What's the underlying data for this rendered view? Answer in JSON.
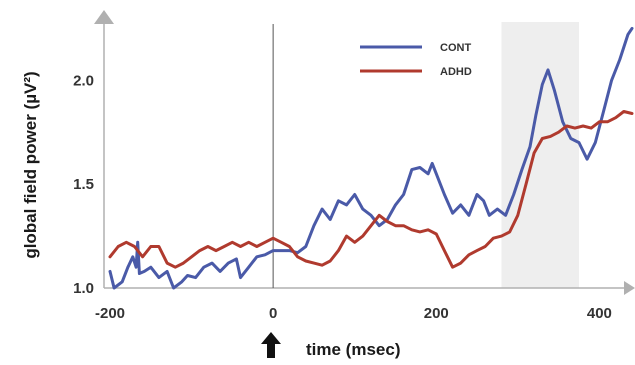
{
  "chart_data": {
    "type": "line",
    "xlabel": "time (msec)",
    "ylabel": "global field power (µV²)",
    "xlim": [
      -200,
      440
    ],
    "ylim": [
      1.0,
      2.3
    ],
    "x_ticks": [
      "-200",
      "0",
      "200",
      "400"
    ],
    "y_ticks": [
      "1.0",
      "1.5",
      "2.0"
    ],
    "highlight_window": [
      280,
      375
    ],
    "stimulus_onset": 0,
    "legend_placement": "top-right",
    "grid": false,
    "series": [
      {
        "name": "CONT",
        "color": "#4a5aa8",
        "points": [
          [
            -200,
            1.08
          ],
          [
            -195,
            1.0
          ],
          [
            -185,
            1.03
          ],
          [
            -178,
            1.1
          ],
          [
            -172,
            1.15
          ],
          [
            -168,
            1.1
          ],
          [
            -166,
            1.22
          ],
          [
            -164,
            1.07
          ],
          [
            -158,
            1.08
          ],
          [
            -150,
            1.1
          ],
          [
            -140,
            1.05
          ],
          [
            -130,
            1.08
          ],
          [
            -122,
            1.0
          ],
          [
            -112,
            1.03
          ],
          [
            -105,
            1.06
          ],
          [
            -95,
            1.05
          ],
          [
            -85,
            1.1
          ],
          [
            -75,
            1.12
          ],
          [
            -65,
            1.08
          ],
          [
            -55,
            1.12
          ],
          [
            -45,
            1.14
          ],
          [
            -40,
            1.05
          ],
          [
            -30,
            1.1
          ],
          [
            -20,
            1.15
          ],
          [
            -10,
            1.16
          ],
          [
            0,
            1.18
          ],
          [
            10,
            1.18
          ],
          [
            20,
            1.18
          ],
          [
            30,
            1.17
          ],
          [
            40,
            1.2
          ],
          [
            50,
            1.3
          ],
          [
            60,
            1.38
          ],
          [
            70,
            1.33
          ],
          [
            80,
            1.42
          ],
          [
            90,
            1.4
          ],
          [
            100,
            1.45
          ],
          [
            110,
            1.38
          ],
          [
            120,
            1.35
          ],
          [
            130,
            1.3
          ],
          [
            140,
            1.33
          ],
          [
            150,
            1.4
          ],
          [
            160,
            1.45
          ],
          [
            170,
            1.57
          ],
          [
            180,
            1.58
          ],
          [
            190,
            1.55
          ],
          [
            195,
            1.6
          ],
          [
            200,
            1.55
          ],
          [
            210,
            1.45
          ],
          [
            220,
            1.36
          ],
          [
            230,
            1.4
          ],
          [
            240,
            1.35
          ],
          [
            250,
            1.45
          ],
          [
            258,
            1.42
          ],
          [
            265,
            1.35
          ],
          [
            275,
            1.38
          ],
          [
            285,
            1.35
          ],
          [
            295,
            1.45
          ],
          [
            305,
            1.57
          ],
          [
            315,
            1.68
          ],
          [
            322,
            1.83
          ],
          [
            330,
            1.98
          ],
          [
            337,
            2.05
          ],
          [
            345,
            1.95
          ],
          [
            355,
            1.8
          ],
          [
            365,
            1.72
          ],
          [
            375,
            1.7
          ],
          [
            385,
            1.62
          ],
          [
            395,
            1.7
          ],
          [
            405,
            1.85
          ],
          [
            415,
            2.0
          ],
          [
            425,
            2.1
          ],
          [
            435,
            2.22
          ],
          [
            440,
            2.25
          ]
        ]
      },
      {
        "name": "ADHD",
        "color": "#b03a2e",
        "points": [
          [
            -200,
            1.15
          ],
          [
            -190,
            1.2
          ],
          [
            -180,
            1.22
          ],
          [
            -170,
            1.2
          ],
          [
            -160,
            1.15
          ],
          [
            -150,
            1.2
          ],
          [
            -140,
            1.2
          ],
          [
            -130,
            1.12
          ],
          [
            -120,
            1.1
          ],
          [
            -110,
            1.12
          ],
          [
            -100,
            1.15
          ],
          [
            -90,
            1.18
          ],
          [
            -80,
            1.2
          ],
          [
            -70,
            1.18
          ],
          [
            -60,
            1.2
          ],
          [
            -50,
            1.22
          ],
          [
            -40,
            1.2
          ],
          [
            -30,
            1.22
          ],
          [
            -20,
            1.2
          ],
          [
            -10,
            1.22
          ],
          [
            0,
            1.24
          ],
          [
            10,
            1.22
          ],
          [
            20,
            1.2
          ],
          [
            30,
            1.15
          ],
          [
            40,
            1.13
          ],
          [
            50,
            1.12
          ],
          [
            60,
            1.11
          ],
          [
            70,
            1.13
          ],
          [
            80,
            1.18
          ],
          [
            90,
            1.25
          ],
          [
            100,
            1.22
          ],
          [
            110,
            1.25
          ],
          [
            120,
            1.3
          ],
          [
            130,
            1.35
          ],
          [
            140,
            1.32
          ],
          [
            150,
            1.3
          ],
          [
            160,
            1.3
          ],
          [
            170,
            1.28
          ],
          [
            180,
            1.27
          ],
          [
            190,
            1.28
          ],
          [
            200,
            1.26
          ],
          [
            210,
            1.18
          ],
          [
            220,
            1.1
          ],
          [
            230,
            1.12
          ],
          [
            240,
            1.16
          ],
          [
            250,
            1.18
          ],
          [
            260,
            1.2
          ],
          [
            270,
            1.24
          ],
          [
            280,
            1.25
          ],
          [
            290,
            1.27
          ],
          [
            300,
            1.35
          ],
          [
            310,
            1.5
          ],
          [
            320,
            1.65
          ],
          [
            330,
            1.72
          ],
          [
            340,
            1.73
          ],
          [
            350,
            1.75
          ],
          [
            360,
            1.78
          ],
          [
            370,
            1.77
          ],
          [
            380,
            1.78
          ],
          [
            390,
            1.77
          ],
          [
            400,
            1.8
          ],
          [
            410,
            1.8
          ],
          [
            420,
            1.82
          ],
          [
            430,
            1.85
          ],
          [
            440,
            1.84
          ]
        ]
      }
    ]
  }
}
